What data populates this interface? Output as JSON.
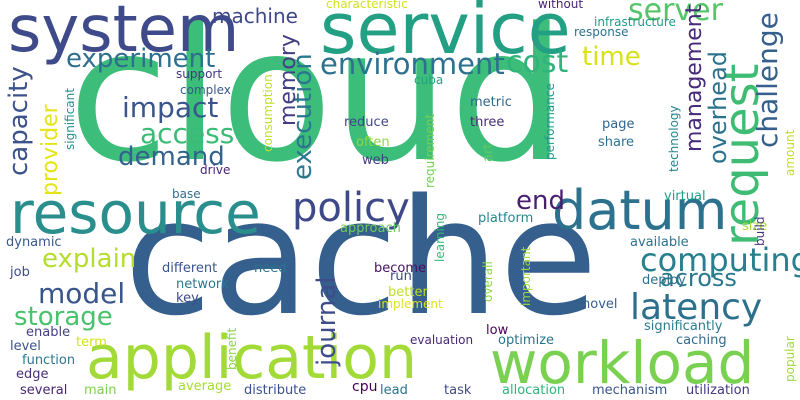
{
  "colors": {
    "background": "#ffffff",
    "palette": [
      "#440154",
      "#3b528b",
      "#21918c",
      "#2a9d8f",
      "#5ec962",
      "#3dbd7a",
      "#a0da39",
      "#d8e219"
    ]
  },
  "words": [
    {
      "text": "cloud",
      "color": "#3dbd7a"
    },
    {
      "text": "cache",
      "color": "#355f8d"
    },
    {
      "text": "service",
      "color": "#23a083"
    },
    {
      "text": "system",
      "color": "#3e4a89"
    },
    {
      "text": "resource",
      "color": "#2a8e8c"
    },
    {
      "text": "application",
      "color": "#a2da37"
    },
    {
      "text": "workload",
      "color": "#7ad151"
    },
    {
      "text": "datum",
      "color": "#2c728e"
    },
    {
      "text": "request",
      "color": "#3fbc73"
    },
    {
      "text": "policy",
      "color": "#3e4989"
    },
    {
      "text": "latency",
      "color": "#2d708e"
    },
    {
      "text": "computing",
      "color": "#27808e"
    },
    {
      "text": "environment",
      "color": "#2d718e"
    },
    {
      "text": "cost",
      "color": "#2fb47c"
    },
    {
      "text": "execution",
      "color": "#2a788e"
    },
    {
      "text": "experiment",
      "color": "#2e6e8e"
    },
    {
      "text": "impact",
      "color": "#3a548c"
    },
    {
      "text": "access",
      "color": "#3bbb75"
    },
    {
      "text": "demand",
      "color": "#33628d"
    },
    {
      "text": "server",
      "color": "#54c568"
    },
    {
      "text": "time",
      "color": "#d8e219"
    },
    {
      "text": "end",
      "color": "#481f70"
    },
    {
      "text": "model",
      "color": "#39568c"
    },
    {
      "text": "storage",
      "color": "#4ac16d"
    },
    {
      "text": "explain",
      "color": "#b5de2b"
    },
    {
      "text": "across",
      "color": "#2a788e"
    },
    {
      "text": "journal",
      "color": "#3e4c8a"
    },
    {
      "text": "capacity",
      "color": "#3b528b"
    },
    {
      "text": "memory",
      "color": "#433e85"
    },
    {
      "text": "management",
      "color": "#472a7a"
    },
    {
      "text": "overhead",
      "color": "#2c728e"
    },
    {
      "text": "challenge",
      "color": "#355f8d"
    },
    {
      "text": "machine",
      "color": "#3f4889"
    },
    {
      "text": "provider",
      "color": "#e5e419"
    },
    {
      "text": "reduce",
      "color": "#404688"
    },
    {
      "text": "three",
      "color": "#472d7b"
    },
    {
      "text": "often",
      "color": "#8fd744"
    },
    {
      "text": "web",
      "color": "#433e85"
    },
    {
      "text": "metric",
      "color": "#31688e"
    },
    {
      "text": "art",
      "color": "#5ec962"
    },
    {
      "text": "page",
      "color": "#32658e"
    },
    {
      "text": "share",
      "color": "#2c738e"
    },
    {
      "text": "technology",
      "color": "#25838e"
    },
    {
      "text": "performance",
      "color": "#1f968b"
    },
    {
      "text": "requirement",
      "color": "#75d054"
    },
    {
      "text": "consumption",
      "color": "#bddf26"
    },
    {
      "text": "cuba",
      "color": "#20a386"
    },
    {
      "text": "support",
      "color": "#453781"
    },
    {
      "text": "complex",
      "color": "#38598c"
    },
    {
      "text": "drive",
      "color": "#482576"
    },
    {
      "text": "base",
      "color": "#2e6f8e"
    },
    {
      "text": "significant",
      "color": "#21918c"
    },
    {
      "text": "characteristic",
      "color": "#d2e21b"
    },
    {
      "text": "without",
      "color": "#482475"
    },
    {
      "text": "infrastructure",
      "color": "#1e9b8a"
    },
    {
      "text": "response",
      "color": "#2c728e"
    },
    {
      "text": "virtual",
      "color": "#1f9e89"
    },
    {
      "text": "size",
      "color": "#a8db34"
    },
    {
      "text": "build",
      "color": "#453882"
    },
    {
      "text": "available",
      "color": "#2c738e"
    },
    {
      "text": "deploy",
      "color": "#2d708e"
    },
    {
      "text": "platform",
      "color": "#24878e"
    },
    {
      "text": "approach",
      "color": "#6ccd5a"
    },
    {
      "text": "learning",
      "color": "#35b779"
    },
    {
      "text": "dynamic",
      "color": "#38598c"
    },
    {
      "text": "job",
      "color": "#3e4c8a"
    },
    {
      "text": "different",
      "color": "#3a548c"
    },
    {
      "text": "network",
      "color": "#2a788e"
    },
    {
      "text": "key",
      "color": "#3f4889"
    },
    {
      "text": "need",
      "color": "#2c738e"
    },
    {
      "text": "become",
      "color": "#471063"
    },
    {
      "text": "run",
      "color": "#3f4788"
    },
    {
      "text": "better",
      "color": "#bddf26"
    },
    {
      "text": "implement",
      "color": "#dde318"
    },
    {
      "text": "overall",
      "color": "#8fd744"
    },
    {
      "text": "important",
      "color": "#9dd93b"
    },
    {
      "text": "novel",
      "color": "#355f8d"
    },
    {
      "text": "low",
      "color": "#440154"
    },
    {
      "text": "optimize",
      "color": "#2b748e"
    },
    {
      "text": "evaluation",
      "color": "#482878"
    },
    {
      "text": "significantly",
      "color": "#287c8e"
    },
    {
      "text": "caching",
      "color": "#31688e"
    },
    {
      "text": "amount",
      "color": "#c0df25"
    },
    {
      "text": "popular",
      "color": "#a0da39"
    },
    {
      "text": "enable",
      "color": "#433e85"
    },
    {
      "text": "level",
      "color": "#3a548c"
    },
    {
      "text": "term",
      "color": "#d2e21b"
    },
    {
      "text": "function",
      "color": "#2a788e"
    },
    {
      "text": "edge",
      "color": "#472f7d"
    },
    {
      "text": "benefit",
      "color": "#8bd646"
    },
    {
      "text": "average",
      "color": "#a5db36"
    },
    {
      "text": "cpu",
      "color": "#440154"
    },
    {
      "text": "distribute",
      "color": "#3b528b"
    },
    {
      "text": "lead",
      "color": "#2c728e"
    },
    {
      "text": "task",
      "color": "#3e4a89"
    },
    {
      "text": "allocation",
      "color": "#2fb47c"
    },
    {
      "text": "mechanism",
      "color": "#39568c"
    },
    {
      "text": "utilization",
      "color": "#453781"
    },
    {
      "text": "several",
      "color": "#482475"
    },
    {
      "text": "main",
      "color": "#7ad151"
    }
  ]
}
